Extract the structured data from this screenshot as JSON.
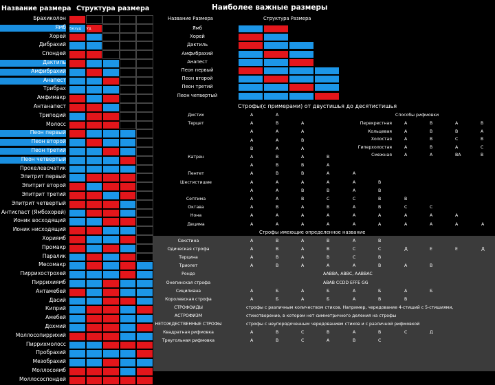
{
  "headers": {
    "left_name": "Название размера",
    "left_structure": "Структура размера",
    "main_title": "Наиболее важные размеры",
    "right_name": "Название Размера",
    "right_structure": "Структура Размера",
    "cell_a": "Безуд",
    "cell_b": "Уд"
  },
  "meters": [
    {
      "name": "Брахиколон",
      "pattern": "r",
      "highlight": false
    },
    {
      "name": "Ямб",
      "pattern": "br",
      "highlight": true
    },
    {
      "name": "Хорей",
      "pattern": "rb",
      "highlight": false
    },
    {
      "name": "Дибрахий",
      "pattern": "bb",
      "highlight": false
    },
    {
      "name": "Спондей",
      "pattern": "rr",
      "highlight": false
    },
    {
      "name": "Дактиль",
      "pattern": "rbb",
      "highlight": true
    },
    {
      "name": "Амфибрахий",
      "pattern": "brb",
      "highlight": true
    },
    {
      "name": "Анапест",
      "pattern": "bbr",
      "highlight": true
    },
    {
      "name": "Трибрах",
      "pattern": "bbb",
      "highlight": false
    },
    {
      "name": "Амфимакр",
      "pattern": "rbr",
      "highlight": false
    },
    {
      "name": "Антанапест",
      "pattern": "rrb",
      "highlight": false
    },
    {
      "name": "Триподий",
      "pattern": "brr",
      "highlight": false
    },
    {
      "name": "Молосс",
      "pattern": "rrr",
      "highlight": false
    },
    {
      "name": "Пеон первый",
      "pattern": "rbbb",
      "highlight": true
    },
    {
      "name": "Пеон второй",
      "pattern": "brbb",
      "highlight": true
    },
    {
      "name": "Пеон третий",
      "pattern": "bbrb",
      "highlight": true
    },
    {
      "name": "Пеон четвертый",
      "pattern": "bbbr",
      "highlight": true
    },
    {
      "name": "Прокелевсматик",
      "pattern": "bbbb",
      "highlight": false
    },
    {
      "name": "Эпитрит первый",
      "pattern": "brrr",
      "highlight": false
    },
    {
      "name": "Эпитрит второй",
      "pattern": "rbrr",
      "highlight": false
    },
    {
      "name": "Эпитрит третий",
      "pattern": "rrbr",
      "highlight": false
    },
    {
      "name": "Эпитрит четвертый",
      "pattern": "rrrb",
      "highlight": false
    },
    {
      "name": "Антиспаст (Ямбохорей)",
      "pattern": "brrb",
      "highlight": false
    },
    {
      "name": "Ионик восходящий",
      "pattern": "bbrr",
      "highlight": false
    },
    {
      "name": "Ионик нисходящий",
      "pattern": "rrbb",
      "highlight": false
    },
    {
      "name": "Хориямб",
      "pattern": "rbbr",
      "highlight": false
    },
    {
      "name": "Промакр",
      "pattern": "rbrb",
      "highlight": false
    },
    {
      "name": "Паралик",
      "pattern": "brbr",
      "highlight": false
    },
    {
      "name": "Месомакр",
      "pattern": "brbrb",
      "highlight": false
    },
    {
      "name": "Пиррихострохей",
      "pattern": "bbbrb",
      "highlight": false
    },
    {
      "name": "Пиррихиямб",
      "pattern": "bbrbb",
      "highlight": false
    },
    {
      "name": "Антамебей",
      "pattern": "rbrbb",
      "highlight": false
    },
    {
      "name": "Дасий",
      "pattern": "bbrrb",
      "highlight": false
    },
    {
      "name": "Киприй",
      "pattern": "brrbr",
      "highlight": false
    },
    {
      "name": "Амебей",
      "pattern": "brrbb",
      "highlight": false
    },
    {
      "name": "Дохмий",
      "pattern": "brrbr",
      "highlight": false
    },
    {
      "name": "Моллосопиррихий",
      "pattern": "rrrbb",
      "highlight": false
    },
    {
      "name": "Пиррихмолосс",
      "pattern": "bbrrr",
      "highlight": false
    },
    {
      "name": "Пробрахий",
      "pattern": "bbbbr",
      "highlight": false
    },
    {
      "name": "Мезобрахий",
      "pattern": "bbrbb",
      "highlight": false
    },
    {
      "name": "Моллосоямб",
      "pattern": "rrrbr",
      "highlight": false
    },
    {
      "name": "Моллососпондей",
      "pattern": "rrrrr",
      "highlight": false
    }
  ],
  "important": [
    {
      "name": "Ямб",
      "pattern": "br"
    },
    {
      "name": "Хорей",
      "pattern": "rb"
    },
    {
      "name": "Дактиль",
      "pattern": "rbb"
    },
    {
      "name": "Амфибрахий",
      "pattern": "brb"
    },
    {
      "name": "Анапест",
      "pattern": "bbr"
    },
    {
      "name": "Пеон первый",
      "pattern": "rbbb"
    },
    {
      "name": "Пеон второй",
      "pattern": "brbb"
    },
    {
      "name": "Пеон третий",
      "pattern": "bbrb"
    },
    {
      "name": "Пеон четвертый",
      "pattern": "bbbr"
    }
  ],
  "stanzas": {
    "title": "Строфы(с примерами) от двустишья до десятистишья",
    "rhyme_title": "Способы рифмовки",
    "rows": [
      {
        "name": "Дистих",
        "cols": [
          "A",
          "A"
        ]
      },
      {
        "name": "Терцет",
        "cols": [
          "A",
          "B",
          "A"
        ]
      },
      {
        "name": "",
        "cols": [
          "A",
          "A",
          "A"
        ]
      },
      {
        "name": "",
        "cols": [
          "A",
          "A",
          "B"
        ]
      },
      {
        "name": "",
        "cols": [
          "B",
          "A",
          "A"
        ]
      },
      {
        "name": "Катрен",
        "cols": [
          "A",
          "B",
          "A",
          "B"
        ]
      },
      {
        "name": "",
        "cols": [
          "A",
          "B",
          "B",
          "A"
        ]
      },
      {
        "name": "Пентет",
        "cols": [
          "A",
          "B",
          "B",
          "A",
          "A"
        ]
      },
      {
        "name": "Шестистишие",
        "cols": [
          "A",
          "A",
          "A",
          "A",
          "A",
          "B"
        ]
      },
      {
        "name": "",
        "cols": [
          "A",
          "A",
          "B",
          "B",
          "A",
          "B"
        ]
      },
      {
        "name": "Септима",
        "cols": [
          "A",
          "A",
          "B",
          "C",
          "C",
          "B",
          "B"
        ]
      },
      {
        "name": "Октава",
        "cols": [
          "A",
          "B",
          "A",
          "B",
          "A",
          "B",
          "C",
          "C"
        ]
      },
      {
        "name": "Нона",
        "cols": [
          "A",
          "A",
          "A",
          "A",
          "A",
          "A",
          "A",
          "A",
          "A"
        ]
      },
      {
        "name": "Децима",
        "cols": [
          "A",
          "A",
          "A",
          "A",
          "A",
          "A",
          "A",
          "A",
          "A",
          "A"
        ]
      }
    ],
    "rhyme_rows": [
      {
        "name": "Перекрестная",
        "cols": [
          "A",
          "B",
          "A",
          "B"
        ]
      },
      {
        "name": "Кольцевая",
        "cols": [
          "A",
          "B",
          "B",
          "A"
        ]
      },
      {
        "name": "Холостая",
        "cols": [
          "A",
          "B",
          "C",
          "B"
        ]
      },
      {
        "name": "Гиперхолостая",
        "cols": [
          "A",
          "B",
          "A",
          "C"
        ]
      },
      {
        "name": "Смежная",
        "cols": [
          "A",
          "A",
          "BA",
          "B"
        ]
      }
    ],
    "special_title": "Строфы имеющие определенное название",
    "special": [
      {
        "name": "Секстина",
        "cols": [
          "A",
          "B",
          "A",
          "B",
          "A",
          "B"
        ]
      },
      {
        "name": "Одическая строфа",
        "cols": [
          "A",
          "B",
          "A",
          "B",
          "C",
          "C",
          "Д",
          "E",
          "E",
          "Д"
        ]
      },
      {
        "name": "Терцина",
        "cols": [
          "A",
          "B",
          "A",
          "B",
          "C",
          "B"
        ]
      },
      {
        "name": "Триолет",
        "cols": [
          "A",
          "B",
          "A",
          "A",
          "A",
          "B",
          "A",
          "B"
        ]
      },
      {
        "name": "Рондо",
        "cols": [
          "AABBA, ABBC, AABBAC"
        ]
      },
      {
        "name": "Онегинская строфа",
        "cols": [
          "ABAB CCDD EFFE GG"
        ]
      },
      {
        "name": "Сицилиана",
        "cols": [
          "A",
          "Б",
          "A",
          "Б",
          "A",
          "Б",
          "A",
          "Б"
        ]
      },
      {
        "name": "Королевская строфа",
        "cols": [
          "A",
          "Б",
          "A",
          "Б",
          "A",
          "B",
          "B"
        ]
      },
      {
        "name": "СТРОФОИДЫ",
        "cols": [
          "строфы с различным количеством стихов. Например, чередование 4-стиший с 5-стишиями,"
        ]
      },
      {
        "name": "АСТРОФИЗМ",
        "cols": [
          "стихотворение, в котором нет симметричного деления на строфы"
        ]
      },
      {
        "name": "НЕТОЖДЕСТВЕННЫЕ СТРОФЫ",
        "cols": [
          "строфы с неупорядоченным чередованием стихов и с различной рифмовкой"
        ]
      },
      {
        "name": "Квадратная рифмовка",
        "cols": [
          "A",
          "B",
          "C",
          "B",
          "A",
          "B",
          "C",
          "Д"
        ]
      },
      {
        "name": "Треугольная рифмовка",
        "cols": [
          "A",
          "B",
          "C",
          "A",
          "B",
          "C"
        ]
      }
    ]
  }
}
